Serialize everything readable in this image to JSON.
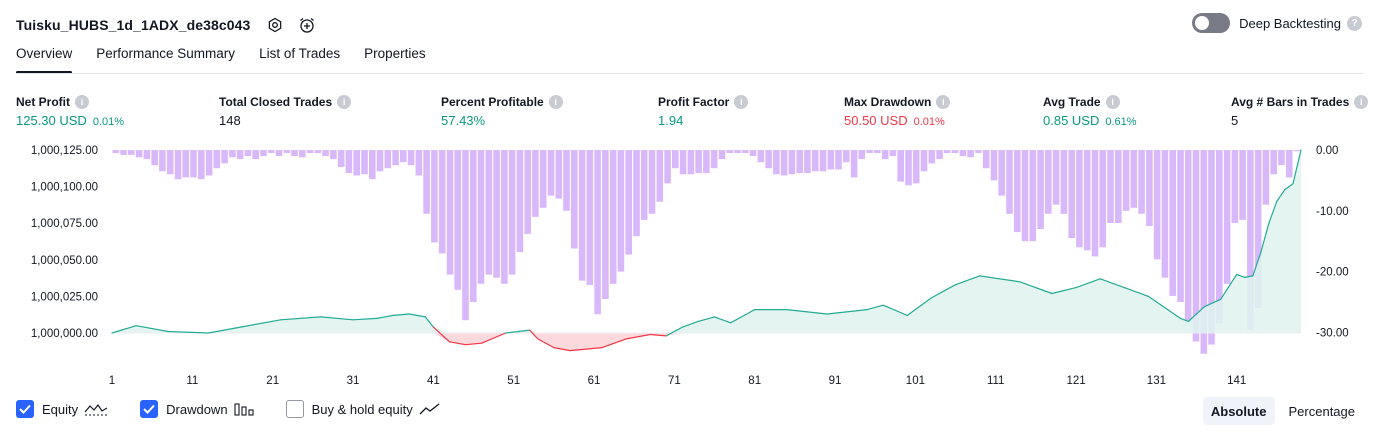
{
  "header": {
    "title": "Tuisku_HUBS_1d_1ADX_de38c043",
    "deep_backtesting_label": "Deep Backtesting",
    "deep_backtesting_enabled": false
  },
  "tabs": [
    {
      "label": "Overview",
      "active": true
    },
    {
      "label": "Performance Summary",
      "active": false
    },
    {
      "label": "List of Trades",
      "active": false
    },
    {
      "label": "Properties",
      "active": false
    }
  ],
  "metrics": {
    "net_profit": {
      "label": "Net Profit",
      "value": "125.30 USD",
      "pct": "0.01%"
    },
    "total_closed_trades": {
      "label": "Total Closed Trades",
      "value": "148"
    },
    "percent_profitable": {
      "label": "Percent Profitable",
      "value": "57.43%"
    },
    "profit_factor": {
      "label": "Profit Factor",
      "value": "1.94"
    },
    "max_drawdown": {
      "label": "Max Drawdown",
      "value": "50.50 USD",
      "pct": "0.01%"
    },
    "avg_trade": {
      "label": "Avg Trade",
      "value": "0.85 USD",
      "pct": "0.61%"
    },
    "avg_bars": {
      "label": "Avg # Bars in Trades",
      "value": "5"
    }
  },
  "legend": {
    "equity_label": "Equity",
    "equity_checked": true,
    "drawdown_label": "Drawdown",
    "drawdown_checked": true,
    "buyhold_label": "Buy & hold equity",
    "buyhold_checked": false
  },
  "view_mode": {
    "absolute_label": "Absolute",
    "percentage_label": "Percentage",
    "active": "Absolute"
  },
  "colors": {
    "equity_line": "#22ab94",
    "equity_fill": "#dff3ee",
    "loss_line": "#f23645",
    "loss_fill": "#fcd9dc",
    "drawdown_bar": "#d8b8fb",
    "accent": "#2962ff"
  },
  "chart_data": {
    "type": "area",
    "left_axis": {
      "ticks": [
        "1,000,000.00",
        "1,000,025.00",
        "1,000,050.00",
        "1,000,075.00",
        "1,000,100.00",
        "1,000,125.00"
      ],
      "min": 1000000,
      "max": 1000125
    },
    "right_axis": {
      "ticks": [
        "0.00",
        "-10.00",
        "-20.00",
        "-30.00"
      ],
      "min": -30,
      "max": 0
    },
    "x_ticks": [
      "1",
      "11",
      "21",
      "31",
      "41",
      "51",
      "61",
      "71",
      "81",
      "91",
      "101",
      "111",
      "121",
      "131",
      "141"
    ],
    "x_range": [
      1,
      149
    ],
    "series": [
      {
        "name": "Equity",
        "x": [
          1,
          4,
          8,
          13,
          17,
          22,
          27,
          31,
          34,
          36,
          38,
          40,
          41,
          43,
          45,
          47,
          50,
          53,
          54,
          56,
          58,
          62,
          65,
          68,
          70,
          72,
          74,
          76,
          78,
          81,
          85,
          90,
          95,
          97,
          100,
          103,
          106,
          109,
          114,
          118,
          121,
          124,
          127,
          130,
          134,
          135,
          137,
          139,
          141,
          142,
          143,
          144,
          145,
          146,
          147,
          148,
          149
        ],
        "y": [
          1000000,
          1000005,
          1000001,
          1000000,
          1000004,
          1000009,
          1000011,
          1000009,
          1000010,
          1000012,
          1000013,
          1000011,
          1000004,
          999994,
          999992,
          999993,
          1000000,
          1000002,
          999996,
          999990,
          999988,
          999990,
          999996,
          999999,
          999998,
          1000004,
          1000008,
          1000011,
          1000007,
          1000016,
          1000016,
          1000013,
          1000016,
          1000019,
          1000012,
          1000024,
          1000033,
          1000039,
          1000035,
          1000027,
          1000031,
          1000037,
          1000031,
          1000025,
          1000010,
          1000008,
          1000018,
          1000023,
          1000040,
          1000038,
          1000039,
          1000055,
          1000075,
          1000090,
          1000098,
          1000102,
          1000125
        ]
      }
    ],
    "drawdown_values": [
      -0.5,
      -0.8,
      -0.8,
      -1.2,
      -1.5,
      -2.5,
      -3.5,
      -4,
      -4.8,
      -4.5,
      -4.5,
      -4.8,
      -4.2,
      -3,
      -2.2,
      -1.2,
      -1.5,
      -1,
      -1.5,
      -1,
      -0.5,
      -1,
      -0.5,
      -1,
      -1.2,
      -0.5,
      -0.5,
      -1,
      -1.5,
      -2.8,
      -3.8,
      -4.2,
      -4,
      -4.8,
      -3.5,
      -3,
      -2.5,
      -2,
      -2.5,
      -4.2,
      -10.5,
      -15.2,
      -17,
      -20.5,
      -23,
      -28,
      -25,
      -22,
      -20.5,
      -21,
      -22,
      -20.5,
      -16.8,
      -13.8,
      -11,
      -9.5,
      -7.5,
      -8,
      -10,
      -16.2,
      -21.5,
      -22.2,
      -27,
      -24.5,
      -22,
      -20,
      -17.2,
      -14.2,
      -11.5,
      -10.5,
      -8.5,
      -5.5,
      -3,
      -4,
      -4,
      -3.8,
      -3.8,
      -3,
      -1.5,
      -0.5,
      -0.5,
      -0.5,
      -1,
      -2,
      -3,
      -4,
      -4.2,
      -4,
      -3.8,
      -3.8,
      -3.5,
      -3.5,
      -3.2,
      -3.2,
      -2,
      -4.5,
      -1.5,
      -0.5,
      -0.5,
      -1.5,
      -1,
      -5.2,
      -5.8,
      -5.5,
      -3.5,
      -2.2,
      -1.5,
      -0.5,
      -0.5,
      -1,
      -1.2,
      -0.5,
      -3,
      -5,
      -7.5,
      -10.5,
      -13.5,
      -15,
      -15,
      -13,
      -10.5,
      -9,
      -10.5,
      -14.5,
      -16,
      -16.5,
      -17.5,
      -16,
      -12,
      -12,
      -10,
      -9.5,
      -10.5,
      -12.5,
      -18,
      -21,
      -24,
      -25,
      -28.5,
      -31.5,
      -33.5,
      -32,
      -28.5,
      -22,
      -12,
      -11.5,
      -29.5,
      -26,
      -9,
      -4,
      -2.5,
      -4.5,
      -0.2
    ]
  }
}
